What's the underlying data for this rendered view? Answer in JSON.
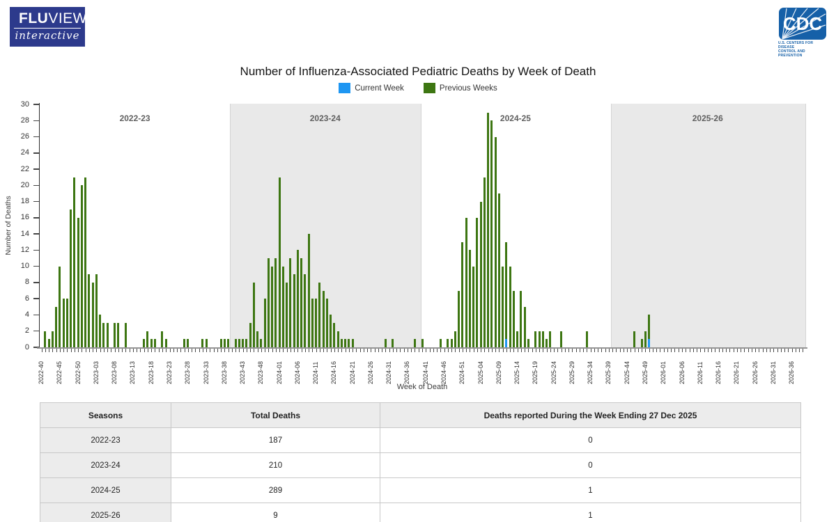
{
  "branding": {
    "fluview_bold": "FLU",
    "fluview_light": "VIEW",
    "fluview_sub": "interactive",
    "cdc_acronym": "CDC",
    "cdc_tagline1": "U.S. CENTERS FOR DISEASE",
    "cdc_tagline2": "CONTROL AND PREVENTION",
    "fluview_bg": "#2d3a8c",
    "cdc_blue": "#1660a8"
  },
  "chart": {
    "title": "Number of Influenza-Associated Pediatric Deaths by Week of Death",
    "legend": [
      {
        "label": "Current Week",
        "color": "#1e96f2"
      },
      {
        "label": "Previous Weeks",
        "color": "#3d7612"
      }
    ],
    "ylabel": "Number of Deaths",
    "xlabel": "Week of Death"
  },
  "chart_data": {
    "type": "bar",
    "title": "Number of Influenza-Associated Pediatric Deaths by Week of Death",
    "xlabel": "Week of Death",
    "ylabel": "Number of Deaths",
    "ylim": [
      0,
      30
    ],
    "ytick_step": 2,
    "grid": false,
    "legend_position": "top-center",
    "x_axis_start": "2022-40",
    "x_axis_end": "2026-39",
    "weeks_per_year": {
      "2022": 52,
      "2023": 52,
      "2024": 52,
      "2025": 53,
      "2026": 52
    },
    "xtick_labels": [
      "2022-40",
      "2022-45",
      "2022-50",
      "2023-03",
      "2023-08",
      "2023-13",
      "2023-18",
      "2023-23",
      "2023-28",
      "2023-33",
      "2023-38",
      "2023-43",
      "2023-48",
      "2024-01",
      "2024-06",
      "2024-11",
      "2024-16",
      "2024-21",
      "2024-26",
      "2024-31",
      "2024-36",
      "2024-41",
      "2024-46",
      "2024-51",
      "2025-04",
      "2025-09",
      "2025-14",
      "2025-19",
      "2025-24",
      "2025-29",
      "2025-34",
      "2025-39",
      "2025-44",
      "2025-49",
      "2026-01",
      "2026-06",
      "2026-11",
      "2026-16",
      "2026-21",
      "2026-26",
      "2026-31",
      "2026-36"
    ],
    "seasons": [
      {
        "label": "2022-23",
        "start": "2022-40",
        "shaded": false
      },
      {
        "label": "2023-24",
        "start": "2023-40",
        "shaded": true
      },
      {
        "label": "2024-25",
        "start": "2024-40",
        "shaded": false
      },
      {
        "label": "2025-26",
        "start": "2025-40",
        "shaded": true
      }
    ],
    "series": [
      {
        "name": "Previous Weeks",
        "color": "#3d7612"
      },
      {
        "name": "Current Week",
        "color": "#1e96f2"
      }
    ],
    "bars_format": [
      "week",
      "previous_weeks",
      "current_week"
    ],
    "bars": [
      [
        "2022-41",
        2
      ],
      [
        "2022-42",
        1
      ],
      [
        "2022-43",
        2
      ],
      [
        "2022-44",
        5
      ],
      [
        "2022-45",
        10
      ],
      [
        "2022-46",
        6
      ],
      [
        "2022-47",
        6
      ],
      [
        "2022-48",
        17
      ],
      [
        "2022-49",
        21
      ],
      [
        "2022-50",
        16
      ],
      [
        "2022-51",
        20
      ],
      [
        "2022-52",
        21
      ],
      [
        "2023-01",
        9
      ],
      [
        "2023-02",
        8
      ],
      [
        "2023-03",
        9
      ],
      [
        "2023-04",
        4
      ],
      [
        "2023-05",
        3
      ],
      [
        "2023-06",
        3
      ],
      [
        "2023-08",
        3
      ],
      [
        "2023-09",
        3
      ],
      [
        "2023-11",
        3
      ],
      [
        "2023-16",
        1
      ],
      [
        "2023-17",
        2
      ],
      [
        "2023-18",
        1
      ],
      [
        "2023-19",
        1
      ],
      [
        "2023-21",
        2
      ],
      [
        "2023-22",
        1
      ],
      [
        "2023-27",
        1
      ],
      [
        "2023-28",
        1
      ],
      [
        "2023-32",
        1
      ],
      [
        "2023-33",
        1
      ],
      [
        "2023-37",
        1
      ],
      [
        "2023-38",
        1
      ],
      [
        "2023-39",
        1
      ],
      [
        "2023-41",
        1
      ],
      [
        "2023-42",
        1
      ],
      [
        "2023-43",
        1
      ],
      [
        "2023-44",
        1
      ],
      [
        "2023-45",
        3
      ],
      [
        "2023-46",
        8
      ],
      [
        "2023-47",
        2
      ],
      [
        "2023-48",
        1
      ],
      [
        "2023-49",
        6
      ],
      [
        "2023-50",
        11
      ],
      [
        "2023-51",
        10
      ],
      [
        "2023-52",
        11
      ],
      [
        "2024-01",
        21
      ],
      [
        "2024-02",
        10
      ],
      [
        "2024-03",
        8
      ],
      [
        "2024-04",
        11
      ],
      [
        "2024-05",
        9
      ],
      [
        "2024-06",
        12
      ],
      [
        "2024-07",
        11
      ],
      [
        "2024-08",
        9
      ],
      [
        "2024-09",
        14
      ],
      [
        "2024-10",
        6
      ],
      [
        "2024-11",
        6
      ],
      [
        "2024-12",
        8
      ],
      [
        "2024-13",
        7
      ],
      [
        "2024-14",
        6
      ],
      [
        "2024-15",
        4
      ],
      [
        "2024-16",
        3
      ],
      [
        "2024-17",
        2
      ],
      [
        "2024-18",
        1
      ],
      [
        "2024-19",
        1
      ],
      [
        "2024-20",
        1
      ],
      [
        "2024-21",
        1
      ],
      [
        "2024-30",
        1
      ],
      [
        "2024-32",
        1
      ],
      [
        "2024-38",
        1
      ],
      [
        "2024-40",
        1
      ],
      [
        "2024-45",
        1
      ],
      [
        "2024-47",
        1
      ],
      [
        "2024-48",
        1
      ],
      [
        "2024-49",
        2
      ],
      [
        "2024-50",
        7
      ],
      [
        "2024-51",
        13
      ],
      [
        "2024-52",
        16
      ],
      [
        "2025-01",
        12
      ],
      [
        "2025-02",
        10
      ],
      [
        "2025-03",
        16
      ],
      [
        "2025-04",
        18
      ],
      [
        "2025-05",
        21
      ],
      [
        "2025-06",
        29
      ],
      [
        "2025-07",
        28
      ],
      [
        "2025-08",
        26
      ],
      [
        "2025-09",
        19
      ],
      [
        "2025-10",
        10
      ],
      [
        "2025-11",
        12,
        1
      ],
      [
        "2025-12",
        10
      ],
      [
        "2025-13",
        7
      ],
      [
        "2025-14",
        2
      ],
      [
        "2025-15",
        7
      ],
      [
        "2025-16",
        5
      ],
      [
        "2025-17",
        1
      ],
      [
        "2025-19",
        2
      ],
      [
        "2025-20",
        2
      ],
      [
        "2025-21",
        2
      ],
      [
        "2025-22",
        1
      ],
      [
        "2025-23",
        2
      ],
      [
        "2025-26",
        2
      ],
      [
        "2025-33",
        2
      ],
      [
        "2025-46",
        2
      ],
      [
        "2025-48",
        1
      ],
      [
        "2025-49",
        2
      ],
      [
        "2025-50",
        3,
        1
      ]
    ]
  },
  "table": {
    "headers": [
      "Seasons",
      "Total Deaths",
      "Deaths reported During the Week Ending 27 Dec 2025"
    ],
    "rows": [
      [
        "2022-23",
        "187",
        "0"
      ],
      [
        "2023-24",
        "210",
        "0"
      ],
      [
        "2024-25",
        "289",
        "1"
      ],
      [
        "2025-26",
        "9",
        "1"
      ]
    ]
  }
}
